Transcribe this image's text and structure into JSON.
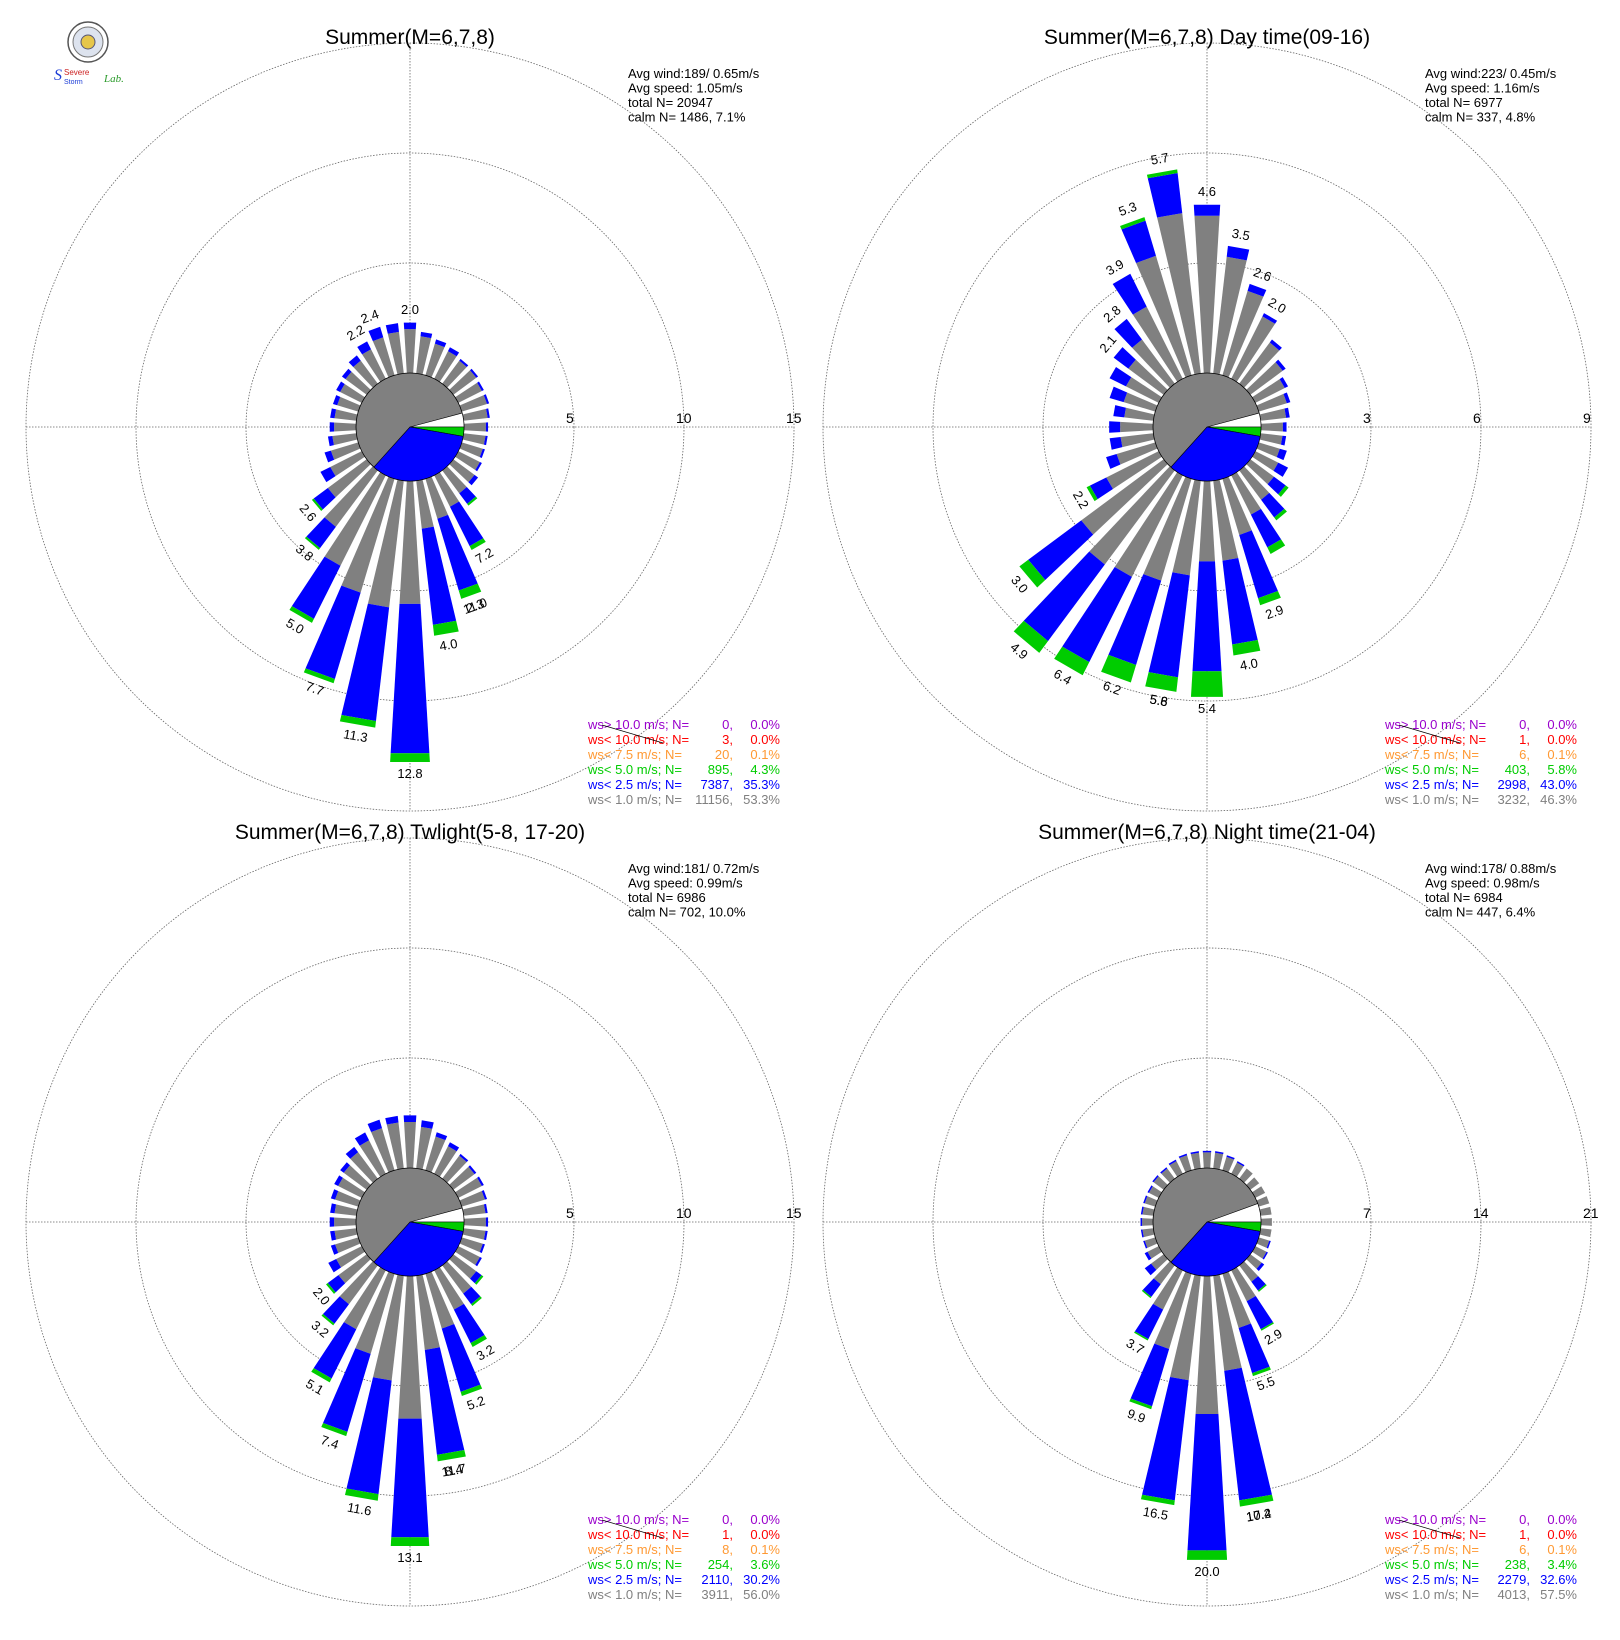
{
  "logo": {
    "line1": "Severe",
    "line2": "Storm",
    "line3": "Lab."
  },
  "colors": {
    "ws_gt10": "#9900cc",
    "ws_lt10": "#ff0000",
    "ws_lt75": "#ff9933",
    "ws_lt50": "#00cc00",
    "ws_lt25": "#0000ff",
    "ws_lt10_gray": "#808080",
    "calm": "#ffffff",
    "grid": "#555555"
  },
  "chart_data": [
    {
      "type": "wind-rose",
      "title": "Summer(M=6,7,8)",
      "stats": [
        "Avg wind:189/ 0.65m/s",
        "Avg speed: 1.05m/s",
        "total N=       20947",
        "calm N=   1486,   7.1%"
      ],
      "rings": [
        "5",
        "10",
        "15"
      ],
      "rmax": 15,
      "legend": [
        {
          "label": "ws> 10.0 m/s; N=",
          "n": "0,",
          "pct": "0.0%",
          "color": "#9900cc"
        },
        {
          "label": "ws< 10.0 m/s; N=",
          "n": "3,",
          "pct": "0.0%",
          "color": "#ff0000"
        },
        {
          "label": "ws<  7.5 m/s; N=",
          "n": "20,",
          "pct": "0.1%",
          "color": "#ff9933"
        },
        {
          "label": "ws<  5.0 m/s; N=",
          "n": "895,",
          "pct": "4.3%",
          "color": "#00cc00"
        },
        {
          "label": "ws<  2.5 m/s; N=",
          "n": "7387,",
          "pct": "35.3%",
          "color": "#0000ff"
        },
        {
          "label": "ws<  1.0 m/s; N=",
          "n": "11156,",
          "pct": "53.3%",
          "color": "#808080"
        }
      ],
      "directions_deg": [
        0,
        10,
        20,
        30,
        40,
        50,
        60,
        70,
        80,
        90,
        100,
        110,
        120,
        130,
        140,
        150,
        160,
        170,
        180,
        190,
        200,
        210,
        220,
        230,
        240,
        250,
        260,
        270,
        280,
        290,
        300,
        310,
        320,
        330,
        340,
        350
      ],
      "gray_pct": [
        2.0,
        1.7,
        1.5,
        1.4,
        1.3,
        1.3,
        1.2,
        1.2,
        1.1,
        1.0,
        1.0,
        1.0,
        1.1,
        1.2,
        1.3,
        1.6,
        1.9,
        2.2,
        5.6,
        5.8,
        5.4,
        4.6,
        3.2,
        2.2,
        1.6,
        1.3,
        1.1,
        1.0,
        1.0,
        1.0,
        1.1,
        1.2,
        1.3,
        1.5,
        1.8,
        1.9
      ],
      "blue_pct": [
        0.3,
        0.2,
        0.2,
        0.2,
        0.1,
        0.1,
        0.1,
        0.1,
        0.1,
        0.1,
        0.1,
        0.1,
        0.1,
        0.2,
        0.6,
        2.0,
        3.4,
        4.4,
        6.8,
        5.2,
        4.1,
        2.7,
        1.2,
        0.8,
        0.5,
        0.3,
        0.2,
        0.2,
        0.2,
        0.2,
        0.2,
        0.2,
        0.3,
        0.4,
        0.5,
        0.4
      ],
      "green_pct": [
        0.0,
        0.0,
        0.0,
        0.0,
        0.0,
        0.0,
        0.0,
        0.0,
        0.0,
        0.0,
        0.0,
        0.0,
        0.0,
        0.0,
        0.1,
        0.2,
        0.4,
        0.5,
        0.4,
        0.3,
        0.2,
        0.2,
        0.1,
        0.1,
        0.0,
        0.0,
        0.0,
        0.0,
        0.0,
        0.0,
        0.0,
        0.0,
        0.0,
        0.0,
        0.0,
        0.0
      ],
      "labels": [
        [
          "0",
          "2.0"
        ],
        [
          "160",
          "2.3"
        ],
        [
          "170",
          "4.0"
        ],
        [
          "150",
          "7.2"
        ],
        [
          "160",
          "11.0"
        ],
        [
          "180",
          "12.8"
        ],
        [
          "190",
          "11.3"
        ],
        [
          "200",
          "7.7"
        ],
        [
          "210",
          "5.0"
        ],
        [
          "220",
          "3.8"
        ],
        [
          "230",
          "2.6"
        ],
        [
          "340",
          "2.4"
        ],
        [
          "330",
          "2.2"
        ]
      ],
      "calm_split_deg": 75
    },
    {
      "type": "wind-rose",
      "title": "Summer(M=6,7,8) Day time(09-16)",
      "stats": [
        "Avg wind:223/ 0.45m/s",
        "Avg speed: 1.16m/s",
        "total N=        6977",
        "calm N=    337,   4.8%"
      ],
      "rings": [
        "3",
        "6",
        "9"
      ],
      "rmax": 9,
      "legend": [
        {
          "label": "ws> 10.0 m/s; N=",
          "n": "0,",
          "pct": "0.0%",
          "color": "#9900cc"
        },
        {
          "label": "ws< 10.0 m/s; N=",
          "n": "1,",
          "pct": "0.0%",
          "color": "#ff0000"
        },
        {
          "label": "ws<  7.5 m/s; N=",
          "n": "6,",
          "pct": "0.1%",
          "color": "#ff9933"
        },
        {
          "label": "ws<  5.0 m/s; N=",
          "n": "403,",
          "pct": "5.8%",
          "color": "#00cc00"
        },
        {
          "label": "ws<  2.5 m/s; N=",
          "n": "2998,",
          "pct": "43.0%",
          "color": "#0000ff"
        },
        {
          "label": "ws<  1.0 m/s; N=",
          "n": "3232,",
          "pct": "46.3%",
          "color": "#808080"
        }
      ],
      "directions_deg": [
        0,
        10,
        20,
        30,
        40,
        50,
        60,
        70,
        80,
        90,
        100,
        110,
        120,
        130,
        140,
        150,
        160,
        170,
        180,
        190,
        200,
        210,
        220,
        230,
        240,
        250,
        260,
        270,
        280,
        290,
        300,
        310,
        320,
        330,
        340,
        350
      ],
      "gray_pct": [
        4.3,
        3.2,
        2.4,
        1.9,
        1.4,
        1.1,
        0.9,
        0.8,
        0.7,
        0.6,
        0.6,
        0.6,
        0.7,
        0.8,
        1.0,
        1.2,
        1.6,
        2.2,
        2.2,
        2.6,
        2.9,
        3.1,
        3.2,
        2.8,
        1.6,
        1.1,
        0.9,
        0.9,
        0.8,
        0.9,
        1.0,
        1.2,
        1.5,
        2.2,
        3.4,
        4.4
      ],
      "blue_pct": [
        0.3,
        0.3,
        0.2,
        0.1,
        0.1,
        0.1,
        0.1,
        0.1,
        0.1,
        0.1,
        0.1,
        0.2,
        0.3,
        0.4,
        0.6,
        1.0,
        1.8,
        2.3,
        3.0,
        2.8,
        2.4,
        2.6,
        2.6,
        1.8,
        0.5,
        0.3,
        0.3,
        0.3,
        0.3,
        0.4,
        0.5,
        0.5,
        0.7,
        1.0,
        1.0,
        1.1
      ],
      "green_pct": [
        0.0,
        0.0,
        0.0,
        0.0,
        0.0,
        0.0,
        0.0,
        0.0,
        0.0,
        0.0,
        0.0,
        0.0,
        0.0,
        0.1,
        0.1,
        0.2,
        0.2,
        0.3,
        0.7,
        0.4,
        0.5,
        0.4,
        0.4,
        0.3,
        0.1,
        0.0,
        0.0,
        0.0,
        0.0,
        0.0,
        0.0,
        0.0,
        0.0,
        0.0,
        0.1,
        0.1
      ],
      "labels": [
        [
          "0",
          "4.6"
        ],
        [
          "10",
          "3.5"
        ],
        [
          "20",
          "2.6"
        ],
        [
          "30",
          "2.0"
        ],
        [
          "350",
          "5.7"
        ],
        [
          "340",
          "5.3"
        ],
        [
          "330",
          "3.9"
        ],
        [
          "320",
          "2.8"
        ],
        [
          "310",
          "2.1"
        ],
        [
          "240",
          "2.2"
        ],
        [
          "230",
          "3.0"
        ],
        [
          "220",
          "4.9"
        ],
        [
          "210",
          "6.4"
        ],
        [
          "200",
          "6.2"
        ],
        [
          "190",
          "5.6"
        ],
        [
          "180",
          "5.4"
        ],
        [
          "190",
          "5.8"
        ],
        [
          "170",
          "4.0"
        ],
        [
          "160",
          "2.9"
        ]
      ],
      "calm_split_deg": 75
    },
    {
      "type": "wind-rose",
      "title": "Summer(M=6,7,8) Twlight(5-8, 17-20)",
      "stats": [
        "Avg wind:181/ 0.72m/s",
        "Avg speed: 0.99m/s",
        "total N=        6986",
        "calm N=    702,  10.0%"
      ],
      "rings": [
        "5",
        "10",
        "15"
      ],
      "rmax": 15,
      "legend": [
        {
          "label": "ws> 10.0 m/s; N=",
          "n": "0,",
          "pct": "0.0%",
          "color": "#9900cc"
        },
        {
          "label": "ws< 10.0 m/s; N=",
          "n": "1,",
          "pct": "0.0%",
          "color": "#ff0000"
        },
        {
          "label": "ws<  7.5 m/s; N=",
          "n": "8,",
          "pct": "0.1%",
          "color": "#ff9933"
        },
        {
          "label": "ws<  5.0 m/s; N=",
          "n": "254,",
          "pct": "3.6%",
          "color": "#00cc00"
        },
        {
          "label": "ws<  2.5 m/s; N=",
          "n": "2110,",
          "pct": "30.2%",
          "color": "#0000ff"
        },
        {
          "label": "ws<  1.0 m/s; N=",
          "n": "3911,",
          "pct": "56.0%",
          "color": "#808080"
        }
      ],
      "directions_deg": [
        0,
        10,
        20,
        30,
        40,
        50,
        60,
        70,
        80,
        90,
        100,
        110,
        120,
        130,
        140,
        150,
        160,
        170,
        180,
        190,
        200,
        210,
        220,
        230,
        240,
        250,
        260,
        270,
        280,
        290,
        300,
        310,
        320,
        330,
        340,
        350
      ],
      "gray_pct": [
        2.1,
        1.9,
        1.6,
        1.4,
        1.3,
        1.2,
        1.2,
        1.1,
        1.0,
        1.0,
        1.0,
        1.0,
        1.1,
        1.3,
        1.6,
        2.0,
        2.6,
        3.4,
        6.5,
        4.8,
        3.8,
        3.0,
        2.2,
        1.6,
        1.3,
        1.1,
        1.0,
        1.0,
        1.0,
        1.1,
        1.2,
        1.3,
        1.5,
        1.7,
        2.0,
        2.1
      ],
      "blue_pct": [
        0.3,
        0.3,
        0.2,
        0.2,
        0.1,
        0.1,
        0.1,
        0.1,
        0.1,
        0.1,
        0.1,
        0.1,
        0.1,
        0.3,
        0.6,
        1.7,
        3.0,
        4.8,
        5.4,
        5.2,
        3.7,
        2.5,
        1.1,
        0.6,
        0.4,
        0.2,
        0.2,
        0.2,
        0.2,
        0.2,
        0.2,
        0.2,
        0.3,
        0.4,
        0.4,
        0.3
      ],
      "green_pct": [
        0.0,
        0.0,
        0.0,
        0.0,
        0.0,
        0.0,
        0.0,
        0.0,
        0.0,
        0.0,
        0.0,
        0.0,
        0.0,
        0.1,
        0.1,
        0.2,
        0.2,
        0.3,
        0.4,
        0.3,
        0.2,
        0.2,
        0.1,
        0.1,
        0.0,
        0.0,
        0.0,
        0.0,
        0.0,
        0.0,
        0.0,
        0.0,
        0.0,
        0.0,
        0.0,
        0.0
      ],
      "labels": [
        [
          "150",
          "3.2"
        ],
        [
          "160",
          "5.2"
        ],
        [
          "170",
          "8.4"
        ],
        [
          "170",
          "11.7"
        ],
        [
          "180",
          "13.1"
        ],
        [
          "190",
          "11.6"
        ],
        [
          "200",
          "7.4"
        ],
        [
          "210",
          "5.1"
        ],
        [
          "220",
          "3.2"
        ],
        [
          "230",
          "2.0"
        ]
      ],
      "calm_split_deg": 75
    },
    {
      "type": "wind-rose",
      "title": "Summer(M=6,7,8) Night time(21-04)",
      "stats": [
        "Avg wind:178/ 0.88m/s",
        "Avg speed: 0.98m/s",
        "total N=        6984",
        "calm N=    447,   6.4%"
      ],
      "rings": [
        "7",
        "14",
        "21"
      ],
      "rmax": 21,
      "legend": [
        {
          "label": "ws> 10.0 m/s; N=",
          "n": "0,",
          "pct": "0.0%",
          "color": "#9900cc"
        },
        {
          "label": "ws< 10.0 m/s; N=",
          "n": "1,",
          "pct": "0.0%",
          "color": "#ff0000"
        },
        {
          "label": "ws<  7.5 m/s; N=",
          "n": "6,",
          "pct": "0.1%",
          "color": "#ff9933"
        },
        {
          "label": "ws<  5.0 m/s; N=",
          "n": "238,",
          "pct": "3.4%",
          "color": "#00cc00"
        },
        {
          "label": "ws<  2.5 m/s; N=",
          "n": "2279,",
          "pct": "32.6%",
          "color": "#0000ff"
        },
        {
          "label": "ws<  1.0 m/s; N=",
          "n": "4013,",
          "pct": "57.5%",
          "color": "#808080"
        }
      ],
      "directions_deg": [
        0,
        10,
        20,
        30,
        40,
        50,
        60,
        70,
        80,
        90,
        100,
        110,
        120,
        130,
        140,
        150,
        160,
        170,
        180,
        190,
        200,
        210,
        220,
        230,
        240,
        250,
        260,
        270,
        280,
        290,
        300,
        310,
        320,
        330,
        340,
        350
      ],
      "gray_pct": [
        1.0,
        1.0,
        0.9,
        0.8,
        0.8,
        0.7,
        0.7,
        0.7,
        0.7,
        0.7,
        0.7,
        0.7,
        0.8,
        0.9,
        1.3,
        2.2,
        3.6,
        6.1,
        8.8,
        6.7,
        5.0,
        2.8,
        1.5,
        1.0,
        0.8,
        0.7,
        0.7,
        0.7,
        0.7,
        0.7,
        0.7,
        0.8,
        0.8,
        0.9,
        1.0,
        1.0
      ],
      "blue_pct": [
        0.1,
        0.1,
        0.1,
        0.1,
        0.0,
        0.0,
        0.0,
        0.0,
        0.0,
        0.0,
        0.0,
        0.1,
        0.1,
        0.2,
        0.7,
        2.0,
        3.0,
        8.3,
        8.7,
        7.7,
        3.8,
        2.1,
        1.0,
        0.5,
        0.2,
        0.1,
        0.1,
        0.1,
        0.1,
        0.1,
        0.1,
        0.1,
        0.1,
        0.1,
        0.1,
        0.1
      ],
      "green_pct": [
        0.0,
        0.0,
        0.0,
        0.0,
        0.0,
        0.0,
        0.0,
        0.0,
        0.0,
        0.0,
        0.0,
        0.0,
        0.0,
        0.0,
        0.1,
        0.1,
        0.2,
        0.4,
        0.6,
        0.3,
        0.2,
        0.1,
        0.1,
        0.0,
        0.0,
        0.0,
        0.0,
        0.0,
        0.0,
        0.0,
        0.0,
        0.0,
        0.0,
        0.0,
        0.0,
        0.0
      ],
      "labels": [
        [
          "150",
          "2.9"
        ],
        [
          "160",
          "5.5"
        ],
        [
          "170",
          "10.2"
        ],
        [
          "170",
          "17.4"
        ],
        [
          "180",
          "20.0"
        ],
        [
          "190",
          "16.5"
        ],
        [
          "200",
          "9.9"
        ],
        [
          "210",
          "3.7"
        ]
      ],
      "calm_split_deg": 70
    }
  ]
}
